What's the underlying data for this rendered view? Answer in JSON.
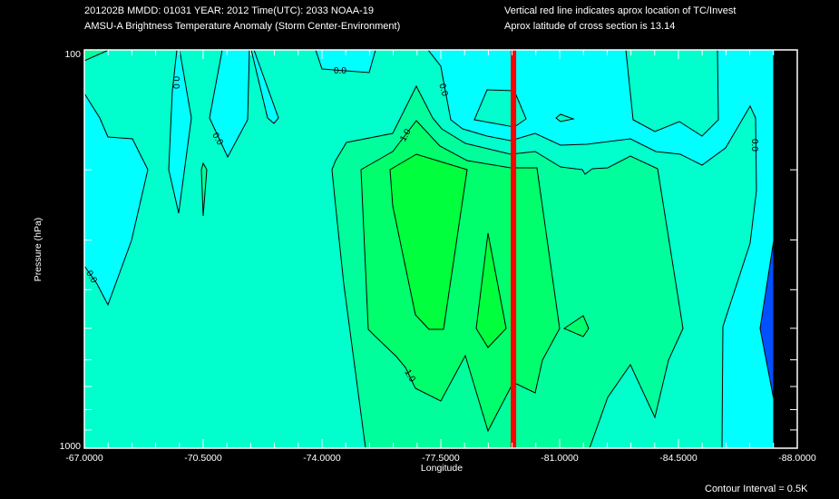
{
  "header": {
    "line1": "201202B  MMDD: 01031 YEAR: 2012 Time(UTC): 2033 NOAA-19",
    "line2": "AMSU-A Brightness Temperature Anomaly (Storm Center-Environment)",
    "note1": "Vertical red line indicates aprox location of TC/Invest",
    "note2": "Aprox latitude of cross section is 13.14"
  },
  "footer": {
    "contour_interval": "Contour Interval = 0.5K"
  },
  "chart_data": {
    "type": "contour",
    "title": "AMSU-A Brightness Temperature Anomaly (Storm Center-Environment)",
    "xlabel": "Longitude",
    "ylabel": "Pressure (hPa)",
    "xlim": [
      -67.0,
      -88.0
    ],
    "ylim": [
      100,
      1000
    ],
    "yscale": "log",
    "x_ticks": [
      -67.0,
      -70.5,
      -74.0,
      -77.5,
      -81.0,
      -84.5,
      -88.0
    ],
    "x_tick_labels": [
      "-67.0000",
      "-70.5000",
      "-74.0000",
      "-77.5000",
      "-81.0000",
      "-84.5000",
      "-88.0000"
    ],
    "y_ticks": [
      100,
      200,
      300,
      400,
      500,
      600,
      700,
      800,
      900,
      1000
    ],
    "y_tick_labels": [
      "100",
      "1000"
    ],
    "contour_interval_k": 0.5,
    "levels": [
      {
        "range": "< -0.5",
        "color": "#0050ff"
      },
      {
        "range": "-0.5 to 0.0",
        "color": "#00ffff"
      },
      {
        "range": "0.0 to 0.5",
        "color": "#00ffcc"
      },
      {
        "range": "0.5 to 1.0",
        "color": "#00ff9c"
      },
      {
        "range": "1.0 to 1.5",
        "color": "#00ff6c"
      },
      {
        "range": "1.5 to 2.0",
        "color": "#00ff3c"
      }
    ],
    "contour_labels": [
      "0.0",
      "0.0",
      "0.0",
      "0.0",
      "0.0",
      "0.0",
      "1.0",
      "1.0"
    ],
    "tc_longitude": -79.64,
    "tc_line_color": "#ff0000",
    "max_anomaly_region": {
      "lon_range": [
        -76.0,
        -78.6
      ],
      "pressure_range": [
        250,
        600
      ],
      "value_range": "1.5 to 2.0"
    }
  }
}
